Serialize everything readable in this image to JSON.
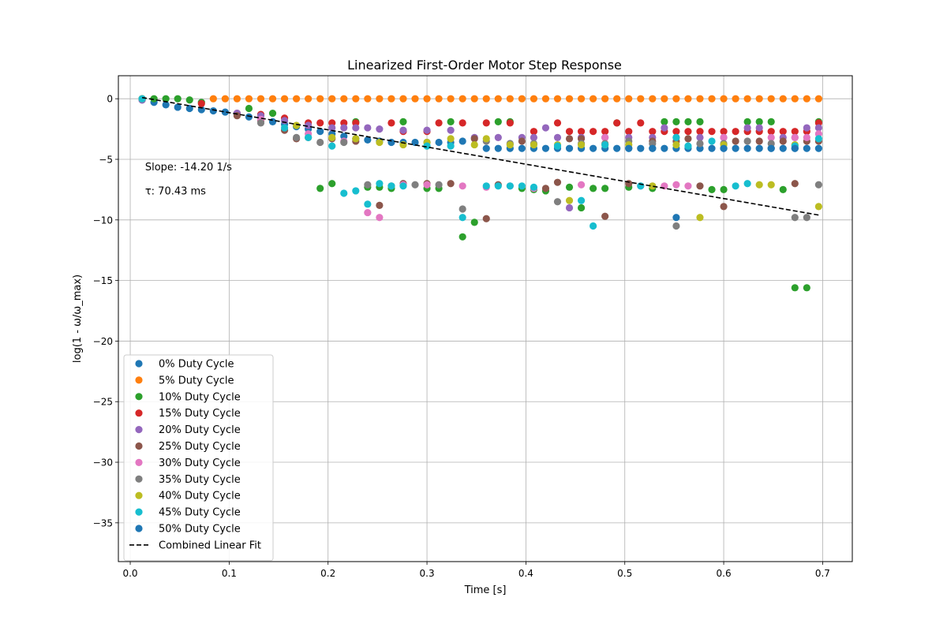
{
  "chart_data": {
    "type": "scatter",
    "title": "Linearized First-Order Motor Step Response",
    "xlabel": "Time [s]",
    "ylabel": "log(1 - ω/ω_max)",
    "xlim": [
      -0.012,
      0.73
    ],
    "ylim": [
      -38.2,
      1.9
    ],
    "x_ticks": [
      0.0,
      0.1,
      0.2,
      0.3,
      0.4,
      0.5,
      0.6,
      0.7
    ],
    "x_tick_labels": [
      "0.0",
      "0.1",
      "0.2",
      "0.3",
      "0.4",
      "0.5",
      "0.6",
      "0.7"
    ],
    "y_ticks": [
      0,
      -5,
      -10,
      -15,
      -20,
      -25,
      -30,
      -35
    ],
    "y_tick_labels": [
      "0",
      "−5",
      "−10",
      "−15",
      "−20",
      "−25",
      "−30",
      "−35"
    ],
    "grid": true,
    "legend_position": "lower-left",
    "annotations": [
      {
        "text": "Slope: -14.20 1/s",
        "x": 0.015,
        "y": -5.9
      },
      {
        "text": "τ: 70.43 ms",
        "x": 0.015,
        "y": -7.9
      }
    ],
    "series": [
      {
        "name": "0% Duty Cycle",
        "color": "#1f77b4",
        "x": [
          0.012,
          0.024,
          0.036,
          0.048,
          0.06,
          0.072,
          0.084,
          0.096,
          0.108,
          0.12,
          0.132,
          0.144,
          0.156,
          0.168,
          0.18,
          0.192,
          0.204,
          0.216,
          0.228,
          0.24,
          0.252,
          0.264,
          0.276,
          0.288,
          0.3,
          0.312,
          0.324,
          0.336,
          0.36,
          0.372,
          0.384,
          0.396,
          0.408,
          0.42,
          0.432,
          0.444,
          0.456,
          0.468,
          0.48,
          0.492,
          0.504,
          0.516,
          0.528,
          0.54,
          0.552,
          0.564,
          0.576,
          0.588,
          0.6,
          0.612,
          0.624,
          0.636,
          0.648,
          0.66,
          0.672,
          0.684,
          0.696
        ],
        "y": [
          -0.1,
          -0.3,
          -0.5,
          -0.7,
          -0.8,
          -0.9,
          -1.0,
          -1.1,
          -1.3,
          -1.5,
          -1.7,
          -1.9,
          -2.1,
          -2.3,
          -2.5,
          -2.7,
          -2.9,
          -3.1,
          -3.3,
          -3.4,
          -3.5,
          -3.6,
          -3.6,
          -3.6,
          -3.6,
          -3.6,
          -3.6,
          -3.5,
          -4.1,
          -4.1,
          -4.1,
          -4.1,
          -4.1,
          -4.1,
          -4.1,
          -4.1,
          -4.1,
          -4.1,
          -4.1,
          -4.1,
          -4.1,
          -4.1,
          -4.1,
          -4.1,
          -4.1,
          -4.1,
          -4.1,
          -4.1,
          -4.1,
          -4.1,
          -4.1,
          -4.1,
          -4.1,
          -4.1,
          -4.1,
          -4.1,
          -4.1
        ]
      },
      {
        "name": "5% Duty Cycle",
        "color": "#ff7f0e",
        "x": [
          0.012,
          0.084,
          0.096,
          0.108,
          0.12,
          0.132,
          0.144,
          0.156,
          0.168,
          0.18,
          0.192,
          0.204,
          0.216,
          0.228,
          0.24,
          0.252,
          0.264,
          0.276,
          0.288,
          0.3,
          0.312,
          0.324,
          0.336,
          0.348,
          0.36,
          0.372,
          0.384,
          0.396,
          0.408,
          0.42,
          0.432,
          0.444,
          0.456,
          0.468,
          0.48,
          0.492,
          0.504,
          0.516,
          0.528,
          0.54,
          0.552,
          0.564,
          0.576,
          0.588,
          0.6,
          0.612,
          0.624,
          0.636,
          0.648,
          0.66,
          0.672,
          0.684,
          0.696
        ],
        "y": [
          0,
          0,
          0,
          0,
          0,
          0,
          0,
          0,
          0,
          0,
          0,
          0,
          0,
          0,
          0,
          0,
          0,
          0,
          0,
          0,
          0,
          0,
          0,
          0,
          0,
          0,
          0,
          0,
          0,
          0,
          0,
          0,
          0,
          0,
          0,
          0,
          0,
          0,
          0,
          0,
          0,
          0,
          0,
          0,
          0,
          0,
          0,
          0,
          0,
          0,
          0,
          0,
          0
        ]
      },
      {
        "name": "10% Duty Cycle",
        "color": "#2ca02c",
        "x": [
          0.024,
          0.036,
          0.048,
          0.06,
          0.072,
          0.12,
          0.144,
          0.192,
          0.204,
          0.228,
          0.24,
          0.252,
          0.264,
          0.276,
          0.3,
          0.312,
          0.324,
          0.336,
          0.348,
          0.372,
          0.384,
          0.396,
          0.408,
          0.42,
          0.444,
          0.456,
          0.468,
          0.48,
          0.492,
          0.504,
          0.528,
          0.54,
          0.552,
          0.564,
          0.576,
          0.588,
          0.6,
          0.624,
          0.636,
          0.648,
          0.66,
          0.672,
          0.684,
          0.696
        ],
        "y": [
          0.0,
          0.0,
          0.0,
          -0.1,
          -0.3,
          -0.8,
          -1.2,
          -7.4,
          -7.0,
          -1.9,
          -7.3,
          -7.3,
          -7.4,
          -1.9,
          -7.4,
          -7.4,
          -1.9,
          -11.4,
          -10.2,
          -1.9,
          -1.9,
          -7.4,
          -7.5,
          -7.6,
          -7.3,
          -9.0,
          -7.4,
          -7.4,
          -2.0,
          -7.3,
          -7.4,
          -1.9,
          -1.9,
          -1.9,
          -1.9,
          -7.5,
          -7.5,
          -1.9,
          -1.9,
          -1.9,
          -7.5,
          -15.6,
          -15.6,
          -1.9
        ]
      },
      {
        "name": "15% Duty Cycle",
        "color": "#d62728",
        "x": [
          0.012,
          0.072,
          0.108,
          0.132,
          0.156,
          0.18,
          0.192,
          0.204,
          0.216,
          0.228,
          0.264,
          0.276,
          0.3,
          0.312,
          0.336,
          0.36,
          0.384,
          0.408,
          0.432,
          0.444,
          0.456,
          0.468,
          0.48,
          0.492,
          0.504,
          0.516,
          0.528,
          0.54,
          0.552,
          0.564,
          0.576,
          0.588,
          0.6,
          0.612,
          0.624,
          0.636,
          0.648,
          0.66,
          0.672,
          0.684,
          0.696
        ],
        "y": [
          0,
          -0.4,
          -1.2,
          -1.3,
          -1.6,
          -2.0,
          -2.0,
          -2.0,
          -2.0,
          -2.0,
          -2.0,
          -2.7,
          -2.7,
          -2.0,
          -2.0,
          -2.0,
          -2.0,
          -2.7,
          -2.0,
          -2.7,
          -2.7,
          -2.7,
          -2.7,
          -2.0,
          -2.7,
          -2.0,
          -2.7,
          -2.7,
          -2.7,
          -2.7,
          -2.7,
          -2.7,
          -2.7,
          -2.7,
          -2.7,
          -2.7,
          -2.7,
          -2.7,
          -2.7,
          -2.7,
          -2.0
        ]
      },
      {
        "name": "20% Duty Cycle",
        "color": "#9467bd",
        "x": [
          0.012,
          0.108,
          0.132,
          0.156,
          0.18,
          0.204,
          0.216,
          0.228,
          0.24,
          0.252,
          0.276,
          0.3,
          0.324,
          0.348,
          0.372,
          0.396,
          0.408,
          0.42,
          0.432,
          0.444,
          0.456,
          0.48,
          0.504,
          0.528,
          0.54,
          0.552,
          0.576,
          0.6,
          0.624,
          0.636,
          0.66,
          0.672,
          0.684,
          0.696
        ],
        "y": [
          -0.1,
          -1.2,
          -1.4,
          -1.8,
          -2.2,
          -2.4,
          -2.4,
          -2.4,
          -2.4,
          -2.5,
          -2.6,
          -2.6,
          -2.6,
          -3.2,
          -3.2,
          -3.2,
          -3.2,
          -2.4,
          -3.2,
          -9.0,
          -3.2,
          -3.2,
          -3.2,
          -3.2,
          -2.4,
          -3.2,
          -3.2,
          -3.2,
          -2.4,
          -2.4,
          -3.2,
          -3.2,
          -2.4,
          -2.4
        ]
      },
      {
        "name": "25% Duty Cycle",
        "color": "#8c564b",
        "x": [
          0.012,
          0.108,
          0.132,
          0.156,
          0.168,
          0.18,
          0.204,
          0.228,
          0.252,
          0.276,
          0.3,
          0.324,
          0.348,
          0.36,
          0.372,
          0.396,
          0.42,
          0.432,
          0.444,
          0.456,
          0.48,
          0.504,
          0.528,
          0.552,
          0.564,
          0.576,
          0.6,
          0.612,
          0.636,
          0.66,
          0.672,
          0.684,
          0.696
        ],
        "y": [
          0,
          -1.4,
          -1.8,
          -2.6,
          -3.3,
          -3.2,
          -3.3,
          -3.5,
          -8.8,
          -7.0,
          -7.0,
          -7.0,
          -3.3,
          -9.9,
          -7.1,
          -3.5,
          -7.4,
          -6.9,
          -3.3,
          -3.3,
          -9.7,
          -7.0,
          -3.5,
          -3.5,
          -3.3,
          -7.2,
          -8.9,
          -3.5,
          -3.5,
          -3.5,
          -7.0,
          -3.5,
          -3.5
        ]
      },
      {
        "name": "30% Duty Cycle",
        "color": "#e377c2",
        "x": [
          0.012,
          0.132,
          0.18,
          0.216,
          0.24,
          0.252,
          0.276,
          0.3,
          0.336,
          0.36,
          0.384,
          0.408,
          0.456,
          0.48,
          0.516,
          0.54,
          0.552,
          0.564,
          0.6,
          0.648,
          0.672,
          0.684,
          0.696
        ],
        "y": [
          0,
          -1.7,
          -2.9,
          -3.5,
          -9.4,
          -9.8,
          -7.1,
          -7.1,
          -7.2,
          -7.3,
          -7.2,
          -7.4,
          -7.1,
          -3.2,
          -7.2,
          -7.2,
          -7.1,
          -7.2,
          -3.2,
          -3.2,
          -3.2,
          -3.2,
          -2.9
        ]
      },
      {
        "name": "35% Duty Cycle",
        "color": "#7f7f7f",
        "x": [
          0.012,
          0.132,
          0.168,
          0.192,
          0.216,
          0.24,
          0.264,
          0.288,
          0.312,
          0.336,
          0.36,
          0.384,
          0.408,
          0.432,
          0.456,
          0.48,
          0.504,
          0.528,
          0.552,
          0.576,
          0.6,
          0.624,
          0.648,
          0.672,
          0.684,
          0.696
        ],
        "y": [
          0,
          -2.0,
          -3.2,
          -3.6,
          -3.6,
          -7.1,
          -7.2,
          -7.1,
          -7.1,
          -9.1,
          -3.5,
          -3.7,
          -3.7,
          -8.5,
          -3.7,
          -3.7,
          -3.5,
          -3.7,
          -10.5,
          -3.7,
          -3.7,
          -3.5,
          -3.7,
          -9.8,
          -9.8,
          -7.1
        ]
      },
      {
        "name": "40% Duty Cycle",
        "color": "#bcbd22",
        "x": [
          0.012,
          0.168,
          0.204,
          0.228,
          0.252,
          0.276,
          0.3,
          0.324,
          0.348,
          0.36,
          0.384,
          0.408,
          0.432,
          0.444,
          0.456,
          0.48,
          0.504,
          0.528,
          0.552,
          0.576,
          0.6,
          0.636,
          0.648,
          0.672,
          0.696
        ],
        "y": [
          0,
          -2.2,
          -3.2,
          -3.3,
          -3.6,
          -3.8,
          -3.6,
          -3.3,
          -3.8,
          -3.3,
          -3.8,
          -3.8,
          -3.8,
          -8.4,
          -3.8,
          -3.8,
          -3.8,
          -7.2,
          -3.8,
          -9.8,
          -3.8,
          -7.1,
          -7.1,
          -3.8,
          -8.9
        ]
      },
      {
        "name": "45% Duty Cycle",
        "color": "#17becf",
        "x": [
          0.012,
          0.156,
          0.18,
          0.204,
          0.216,
          0.228,
          0.24,
          0.252,
          0.264,
          0.276,
          0.3,
          0.324,
          0.336,
          0.36,
          0.372,
          0.384,
          0.396,
          0.408,
          0.432,
          0.456,
          0.468,
          0.48,
          0.516,
          0.552,
          0.564,
          0.588,
          0.612,
          0.624,
          0.672,
          0.696
        ],
        "y": [
          0,
          -2.4,
          -3.2,
          -3.9,
          -7.8,
          -7.6,
          -8.7,
          -7.0,
          -7.2,
          -7.2,
          -3.9,
          -3.9,
          -9.8,
          -7.2,
          -7.2,
          -7.2,
          -7.2,
          -7.3,
          -3.9,
          -8.4,
          -10.5,
          -3.8,
          -7.2,
          -3.2,
          -3.9,
          -3.5,
          -7.2,
          -7.0,
          -3.9,
          -3.3
        ]
      },
      {
        "name": "50% Duty Cycle",
        "color": "#1f77b4",
        "x": [
          0.552,
          0.504,
          0.528,
          0.6,
          0.648,
          0.672
        ],
        "y": [
          -9.8,
          -4.1,
          -4.1,
          -4.1,
          -4.1,
          -4.1
        ]
      },
      {
        "name": "Combined Linear Fit",
        "color": "#000000",
        "style": "dashed",
        "x": [
          0.012,
          0.696
        ],
        "y": [
          0.1,
          -9.6
        ]
      }
    ]
  }
}
